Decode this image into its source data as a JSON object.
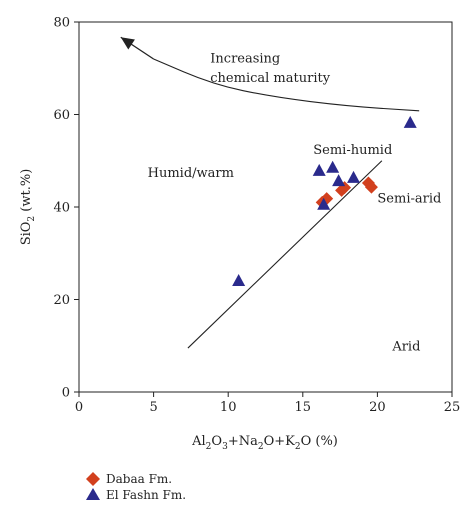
{
  "chart_data": {
    "type": "scatter",
    "title": "",
    "xlabel": {
      "t1": "Al",
      "s1": "2",
      "t2": "O",
      "s2": "3",
      "t3": "+Na",
      "s3": "2",
      "t4": "O+K",
      "s4": "2",
      "t5": "O (%)"
    },
    "ylabel": {
      "t1": "SiO",
      "s1": "2",
      "t2": " (wt.%)"
    },
    "xlim": [
      0,
      25
    ],
    "ylim": [
      0,
      80
    ],
    "x_ticks": [
      0,
      5,
      10,
      15,
      20,
      25
    ],
    "y_ticks": [
      0,
      20,
      40,
      60,
      80
    ],
    "x_tick_labels": [
      "0",
      "5",
      "10",
      "15",
      "20",
      "25"
    ],
    "y_tick_labels": [
      "0",
      "20",
      "40",
      "60",
      "80"
    ],
    "grid": false,
    "legend_placement": "bottom-left, below plot",
    "series": [
      {
        "name": "Dabaa Fm.",
        "marker": "diamond",
        "color": "#d2401e",
        "points": [
          {
            "x": 16.3,
            "y": 41.0
          },
          {
            "x": 16.6,
            "y": 41.8
          },
          {
            "x": 17.6,
            "y": 43.6
          },
          {
            "x": 17.8,
            "y": 44.2
          },
          {
            "x": 19.4,
            "y": 45.2
          },
          {
            "x": 19.6,
            "y": 44.3
          }
        ]
      },
      {
        "name": "El Fashn Fm.",
        "marker": "triangle",
        "color": "#2a2a8c",
        "points": [
          {
            "x": 10.7,
            "y": 24.0
          },
          {
            "x": 16.1,
            "y": 47.8
          },
          {
            "x": 16.4,
            "y": 40.5
          },
          {
            "x": 17.0,
            "y": 48.5
          },
          {
            "x": 17.4,
            "y": 45.6
          },
          {
            "x": 18.4,
            "y": 46.3
          },
          {
            "x": 22.2,
            "y": 58.2
          }
        ]
      }
    ],
    "reference_lines": [
      {
        "name": "trend-line",
        "points": [
          {
            "x": 7.3,
            "y": 9.5
          },
          {
            "x": 20.3,
            "y": 50.0
          }
        ]
      },
      {
        "name": "maturity-curve",
        "points": [
          {
            "x": 5.0,
            "y": 72.0
          },
          {
            "x": 9.0,
            "y": 66.5
          },
          {
            "x": 13.0,
            "y": 63.8
          },
          {
            "x": 18.0,
            "y": 61.8
          },
          {
            "x": 22.8,
            "y": 60.8
          }
        ]
      }
    ],
    "arrow": {
      "from": {
        "x": 5.0,
        "y": 72.0
      },
      "to": {
        "x": 2.8,
        "y": 76.7
      }
    },
    "annotations": [
      {
        "key": "increasing",
        "text": "Increasing",
        "x": 8.8,
        "y": 71.2
      },
      {
        "key": "maturity",
        "text": "chemical maturity",
        "x": 8.8,
        "y": 67.0
      },
      {
        "key": "semi_humid",
        "text": "Semi-humid",
        "x": 15.7,
        "y": 51.5
      },
      {
        "key": "humid_warm",
        "text": "Humid/warm",
        "x": 4.6,
        "y": 46.5
      },
      {
        "key": "semi_arid",
        "text": "Semi-arid",
        "x": 20.0,
        "y": 41.0
      },
      {
        "key": "arid",
        "text": "Arid",
        "x": 21.0,
        "y": 9.0
      }
    ]
  }
}
